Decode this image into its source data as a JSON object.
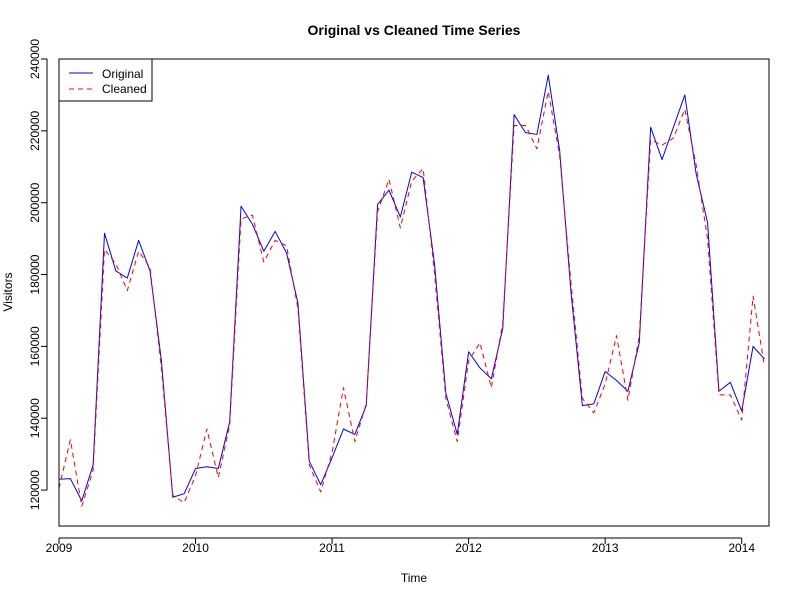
{
  "chart_data": {
    "type": "line",
    "title": "Original vs Cleaned Time Series",
    "xlabel": "Time",
    "ylabel": "Visitors",
    "xlim": [
      2009.0,
      2014.2
    ],
    "ylim": [
      110000,
      240000
    ],
    "x_ticks": [
      2009,
      2010,
      2011,
      2012,
      2013,
      2014
    ],
    "x_tick_labels": [
      "2009",
      "2010",
      "2011",
      "2012",
      "2013",
      "2014"
    ],
    "y_ticks": [
      120000,
      140000,
      160000,
      180000,
      200000,
      220000,
      240000
    ],
    "y_tick_labels": [
      "120000",
      "140000",
      "160000",
      "180000",
      "200000",
      "220000",
      "240000"
    ],
    "grid": false,
    "legend_position": "top-left",
    "x": [
      2009.0,
      2009.0833,
      2009.1667,
      2009.25,
      2009.3333,
      2009.4167,
      2009.5,
      2009.5833,
      2009.6667,
      2009.75,
      2009.8333,
      2009.9167,
      2010.0,
      2010.0833,
      2010.1667,
      2010.25,
      2010.3333,
      2010.4167,
      2010.5,
      2010.5833,
      2010.6667,
      2010.75,
      2010.8333,
      2010.9167,
      2011.0,
      2011.0833,
      2011.1667,
      2011.25,
      2011.3333,
      2011.4167,
      2011.5,
      2011.5833,
      2011.6667,
      2011.75,
      2011.8333,
      2011.9167,
      2012.0,
      2012.0833,
      2012.1667,
      2012.25,
      2012.3333,
      2012.4167,
      2012.5,
      2012.5833,
      2012.6667,
      2012.75,
      2012.8333,
      2012.9167,
      2013.0,
      2013.0833,
      2013.1667,
      2013.25,
      2013.3333,
      2013.4167,
      2013.5,
      2013.5833,
      2013.6667,
      2013.75,
      2013.8333,
      2013.9167,
      2014.0,
      2014.0833,
      2014.1667
    ],
    "series": [
      {
        "name": "Original",
        "color": "#0000ff",
        "dash": "solid",
        "values": [
          123000,
          123200,
          117000,
          127000,
          191500,
          181000,
          179000,
          189500,
          181000,
          156000,
          118000,
          119000,
          126000,
          126500,
          126000,
          139000,
          199000,
          194000,
          186500,
          192000,
          186000,
          172000,
          128000,
          121500,
          129000,
          137000,
          135500,
          143500,
          199500,
          203500,
          196000,
          208500,
          207000,
          183000,
          147000,
          135500,
          158500,
          154000,
          151000,
          165000,
          224500,
          219500,
          219000,
          235500,
          214500,
          175000,
          143500,
          144000,
          153000,
          150500,
          147500,
          161000,
          221000,
          212000,
          221000,
          230000,
          208000,
          194500,
          147500,
          150000,
          142000,
          160000,
          156500
        ]
      },
      {
        "name": "Cleaned",
        "color": "#ff0000",
        "dash": "dashed",
        "values": [
          120500,
          134000,
          115500,
          125500,
          187000,
          183000,
          175500,
          186500,
          182000,
          154000,
          118500,
          116500,
          124000,
          137000,
          123500,
          138000,
          195500,
          196500,
          183500,
          189500,
          188000,
          170500,
          127000,
          119500,
          130500,
          148500,
          133500,
          144000,
          197500,
          206500,
          193000,
          206000,
          209500,
          180500,
          145500,
          133500,
          156000,
          161000,
          148500,
          166500,
          221500,
          221500,
          215000,
          231000,
          213000,
          177500,
          145500,
          141500,
          149500,
          163000,
          145000,
          163000,
          217500,
          216000,
          218000,
          226000,
          210500,
          190000,
          146500,
          146500,
          139500,
          174000,
          154500
        ]
      }
    ]
  }
}
